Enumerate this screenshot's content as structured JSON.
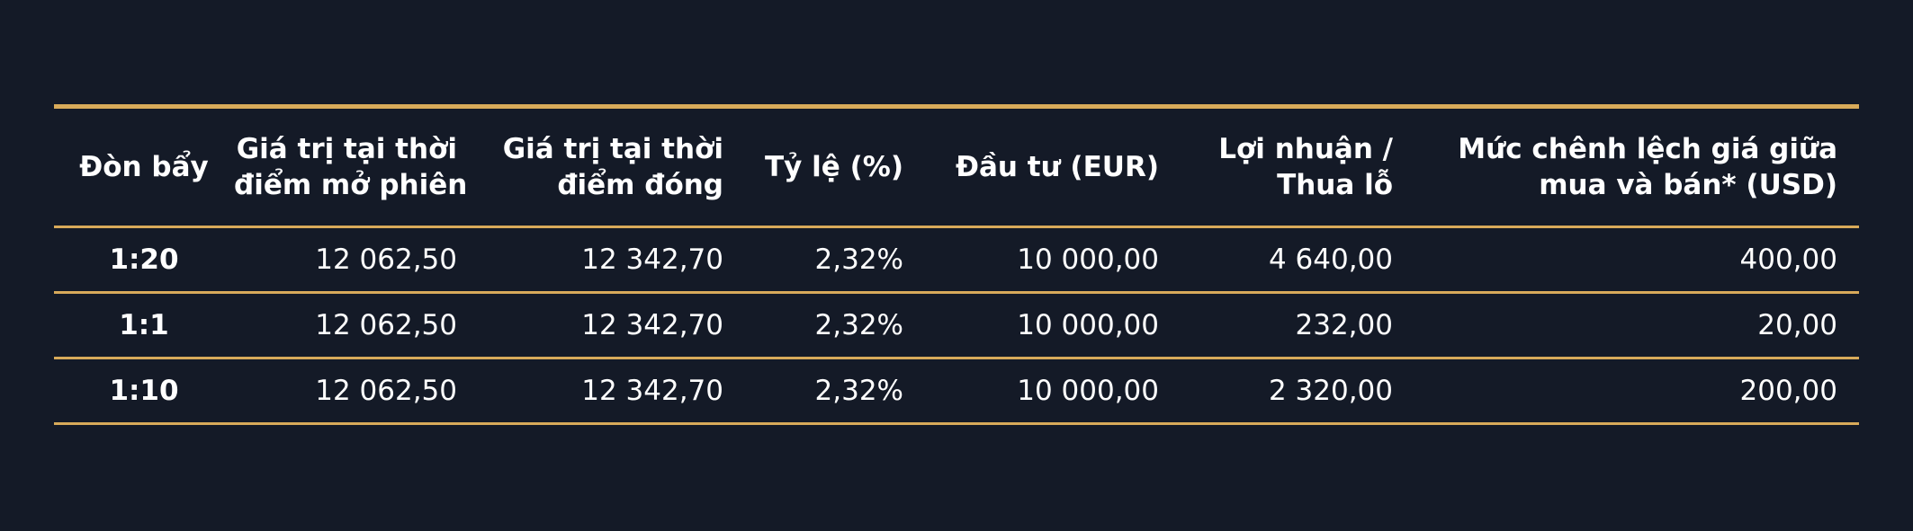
{
  "colors": {
    "background": "#141a27",
    "accent": "#d8aa5a",
    "text": "#ffffff"
  },
  "table": {
    "headers": [
      [
        "Đòn bẩy"
      ],
      [
        "Giá trị tại thời",
        "điểm mở phiên"
      ],
      [
        "Giá trị tại thời",
        "điểm đóng"
      ],
      [
        "Tỷ lệ (%)"
      ],
      [
        "Đầu tư (EUR)"
      ],
      [
        "Lợi nhuận /",
        "Thua lỗ"
      ],
      [
        "Mức chênh lệch giá giữa",
        "mua và bán* (USD)"
      ]
    ],
    "rows": [
      [
        "1:20",
        "12 062,50",
        "12 342,70",
        "2,32%",
        "10 000,00",
        "4 640,00",
        "400,00"
      ],
      [
        "1:1",
        "12 062,50",
        "12 342,70",
        "2,32%",
        "10 000,00",
        "232,00",
        "20,00"
      ],
      [
        "1:10",
        "12 062,50",
        "12 342,70",
        "2,32%",
        "10 000,00",
        "2 320,00",
        "200,00"
      ]
    ]
  }
}
